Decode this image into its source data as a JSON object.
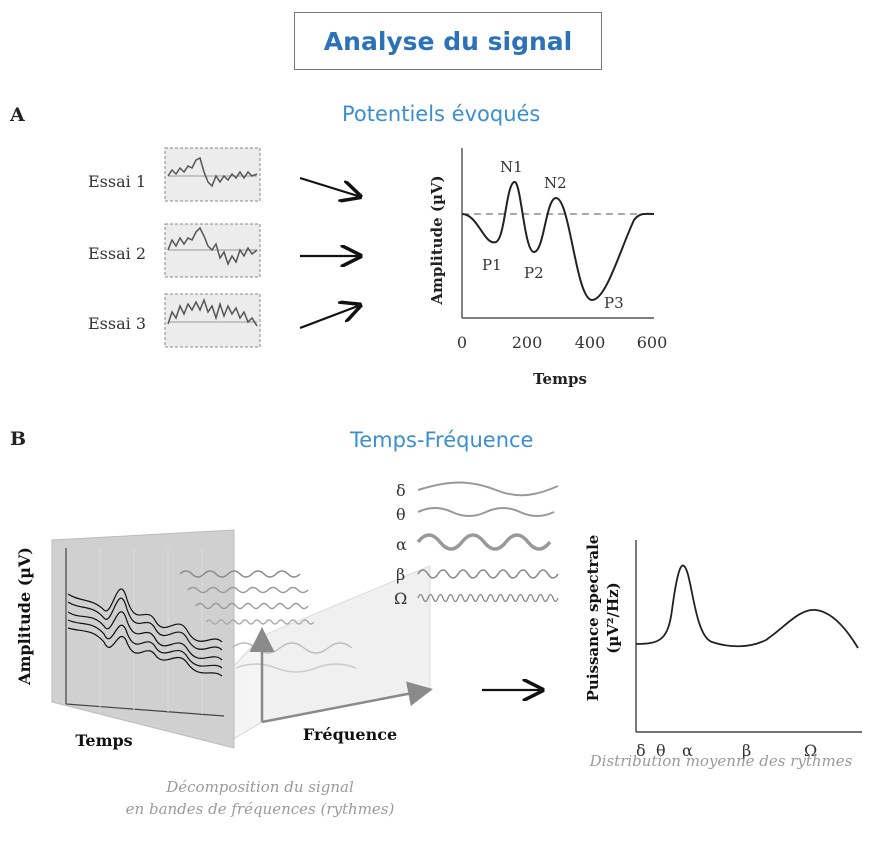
{
  "title": "Analyse du signal",
  "section_a": {
    "letter": "A",
    "title": "Potentiels évoqués",
    "trials": [
      "Essai 1",
      "Essai 2",
      "Essai 3"
    ],
    "erp_chart": {
      "ylabel": "Amplitude (µV)",
      "xlabel": "Temps",
      "ticks": [
        "0",
        "200",
        "400",
        "600"
      ],
      "peaks": [
        "N1",
        "N2",
        "P1",
        "P2",
        "P3"
      ]
    }
  },
  "section_b": {
    "letter": "B",
    "title": "Temps-Fréquence",
    "left_ylabel": "Amplitude (µV)",
    "left_xlabel": "Temps",
    "freq_label": "Fréquence",
    "bands": [
      "δ",
      "θ",
      "α",
      "β",
      "Ω"
    ],
    "spectrum_ylabel": "Puissance spectrale",
    "spectrum_unit": "(µV²/Hz)",
    "caption_left_line1": "Décomposition du signal",
    "caption_left_line2": "en bandes de fréquences (rythmes)",
    "caption_right": "Distribution moyenne des rythmes"
  }
}
